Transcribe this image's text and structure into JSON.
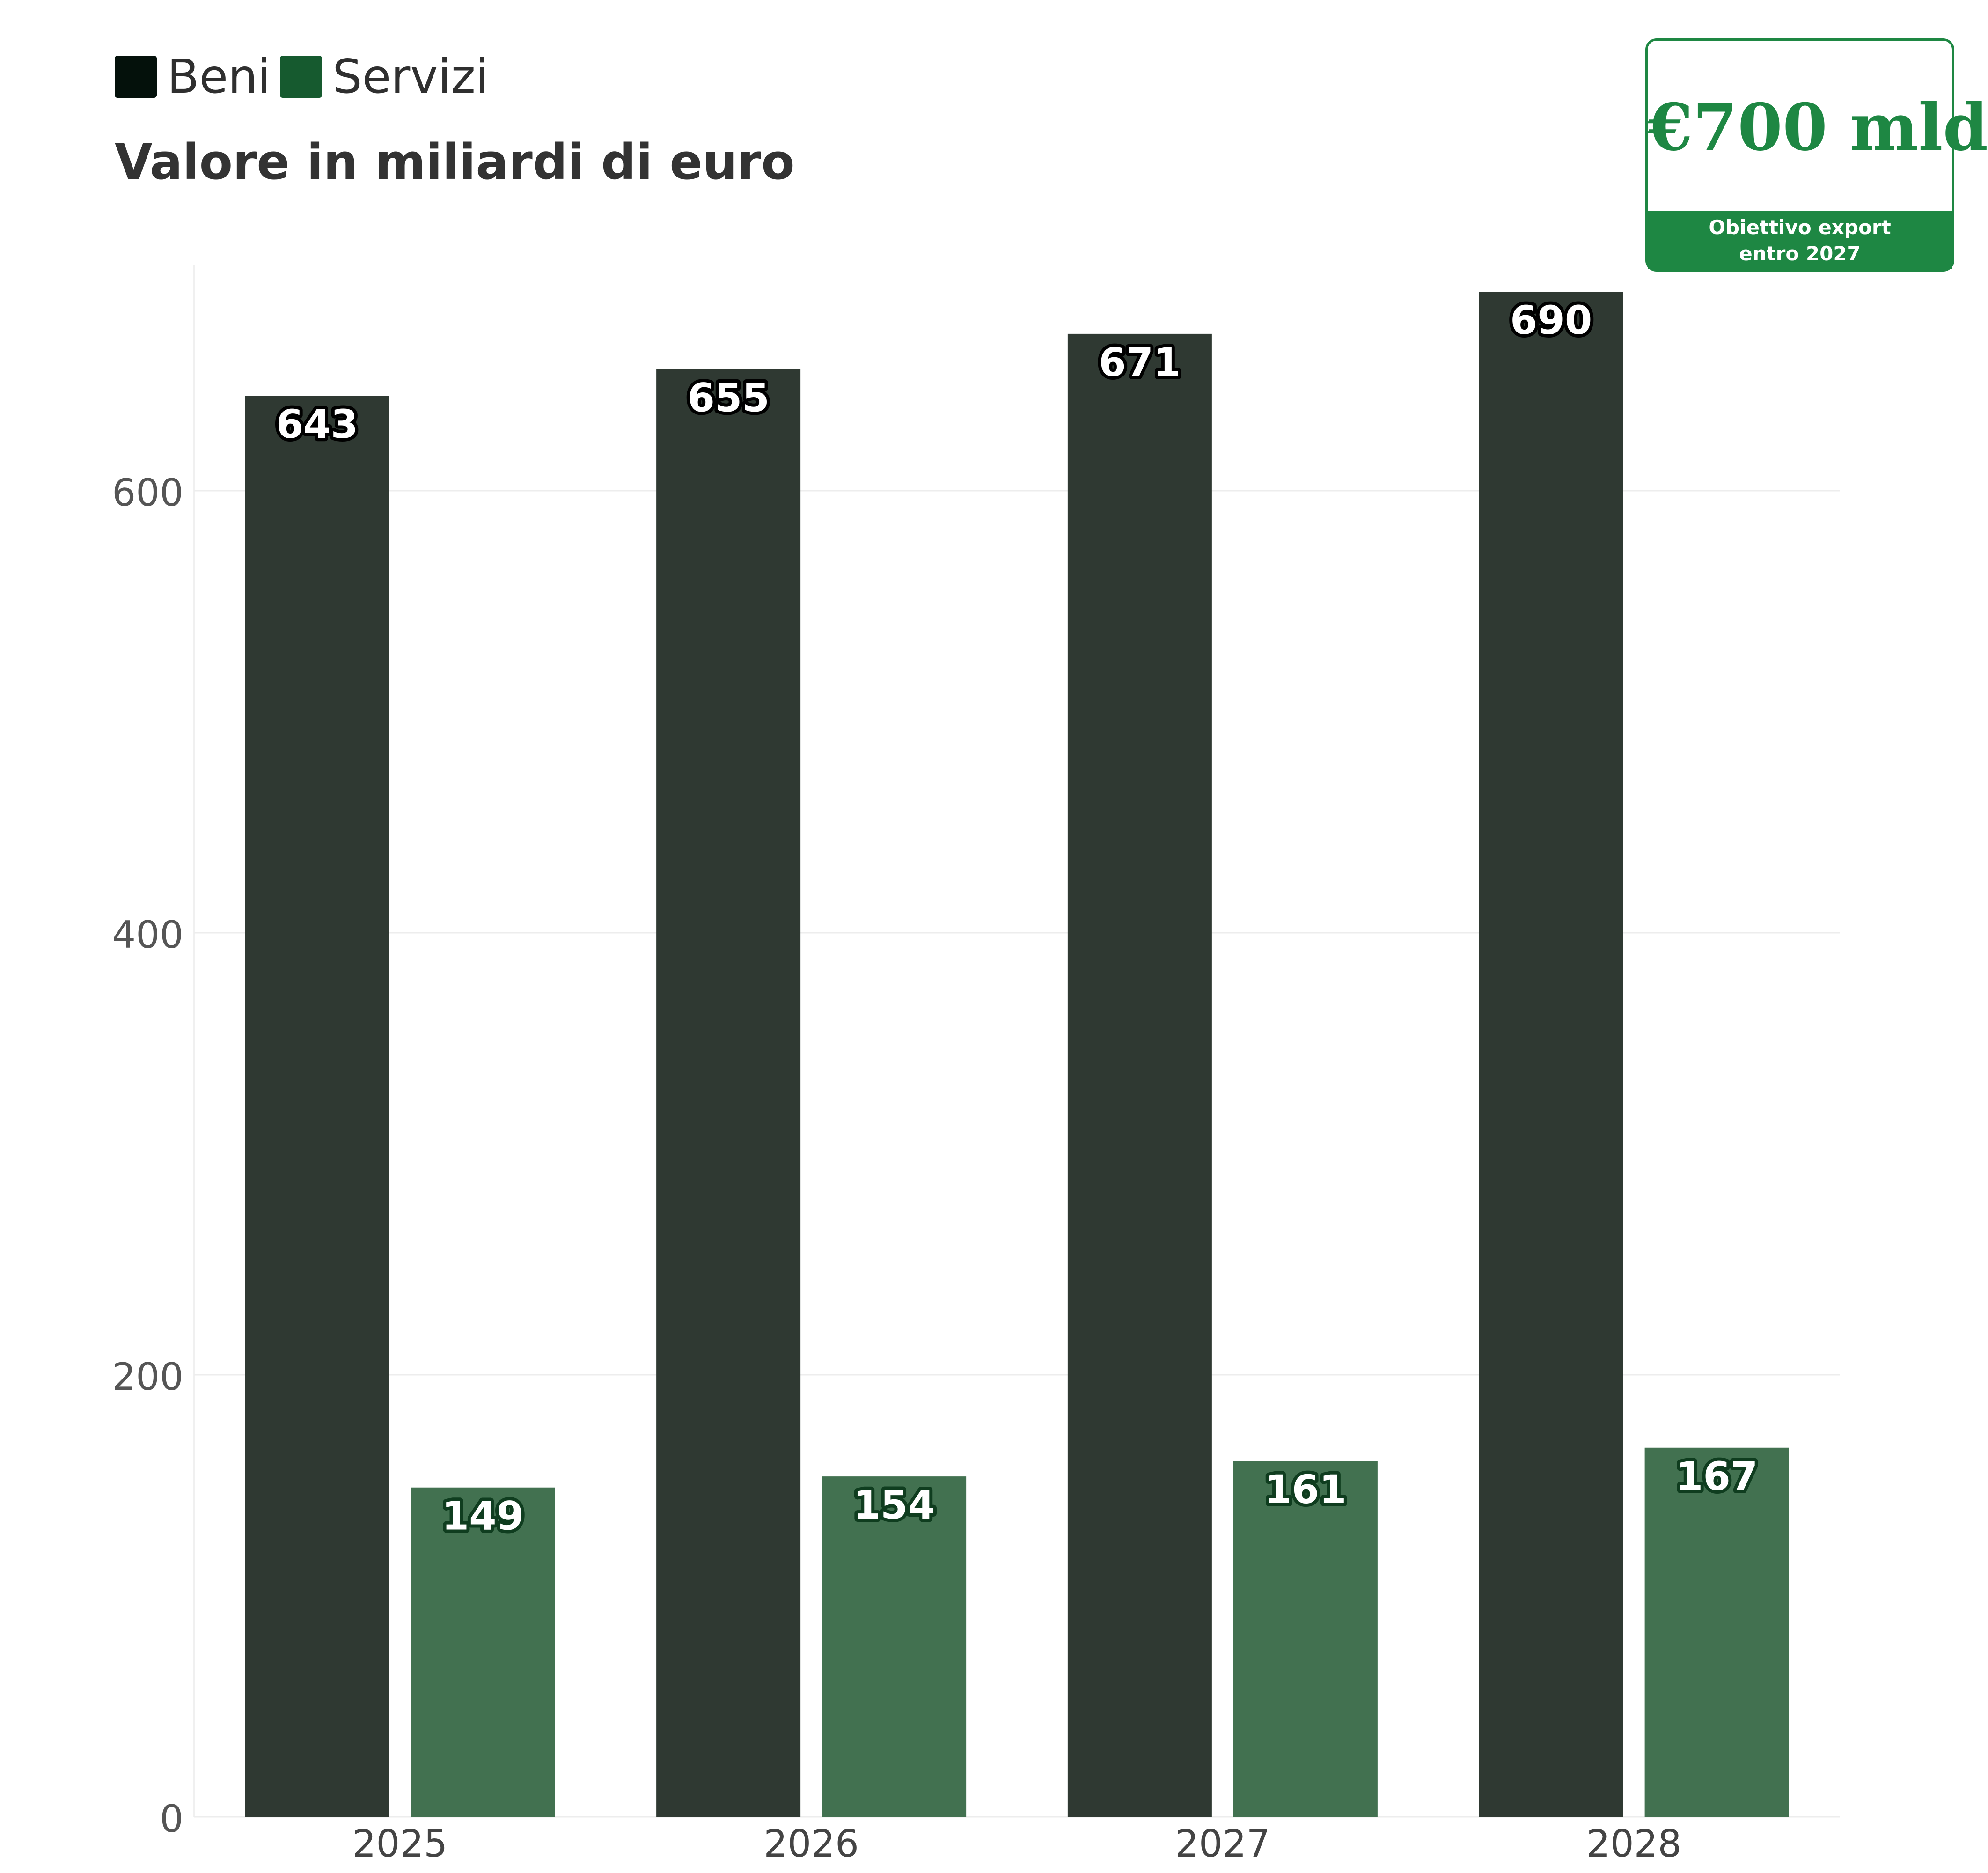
{
  "legend": {
    "items": [
      {
        "label": "Beni",
        "color": "#04110b"
      },
      {
        "label": "Servizi",
        "color": "#165a2f"
      }
    ]
  },
  "subtitle": "Valore in miliardi di euro",
  "badge": {
    "value": "€700 mld",
    "caption_line1": "Obiettivo export",
    "caption_line2": "entro 2027",
    "color": "#1e8743"
  },
  "chart_data": {
    "type": "bar",
    "categories": [
      "2025",
      "2026",
      "2027",
      "2028"
    ],
    "series": [
      {
        "name": "Beni",
        "values": [
          643,
          655,
          671,
          690
        ],
        "color": "#2f3932"
      },
      {
        "name": "Servizi",
        "values": [
          149,
          154,
          161,
          167
        ],
        "color": "#427150"
      }
    ],
    "data_labels": [
      [
        "643",
        "655",
        "671",
        "690"
      ],
      [
        "149",
        "154",
        "161",
        "167"
      ]
    ],
    "yticks": [
      0,
      200,
      400,
      600
    ],
    "ylim": [
      0,
      700
    ],
    "grid": "horizontal",
    "legend_position": "top-left"
  }
}
